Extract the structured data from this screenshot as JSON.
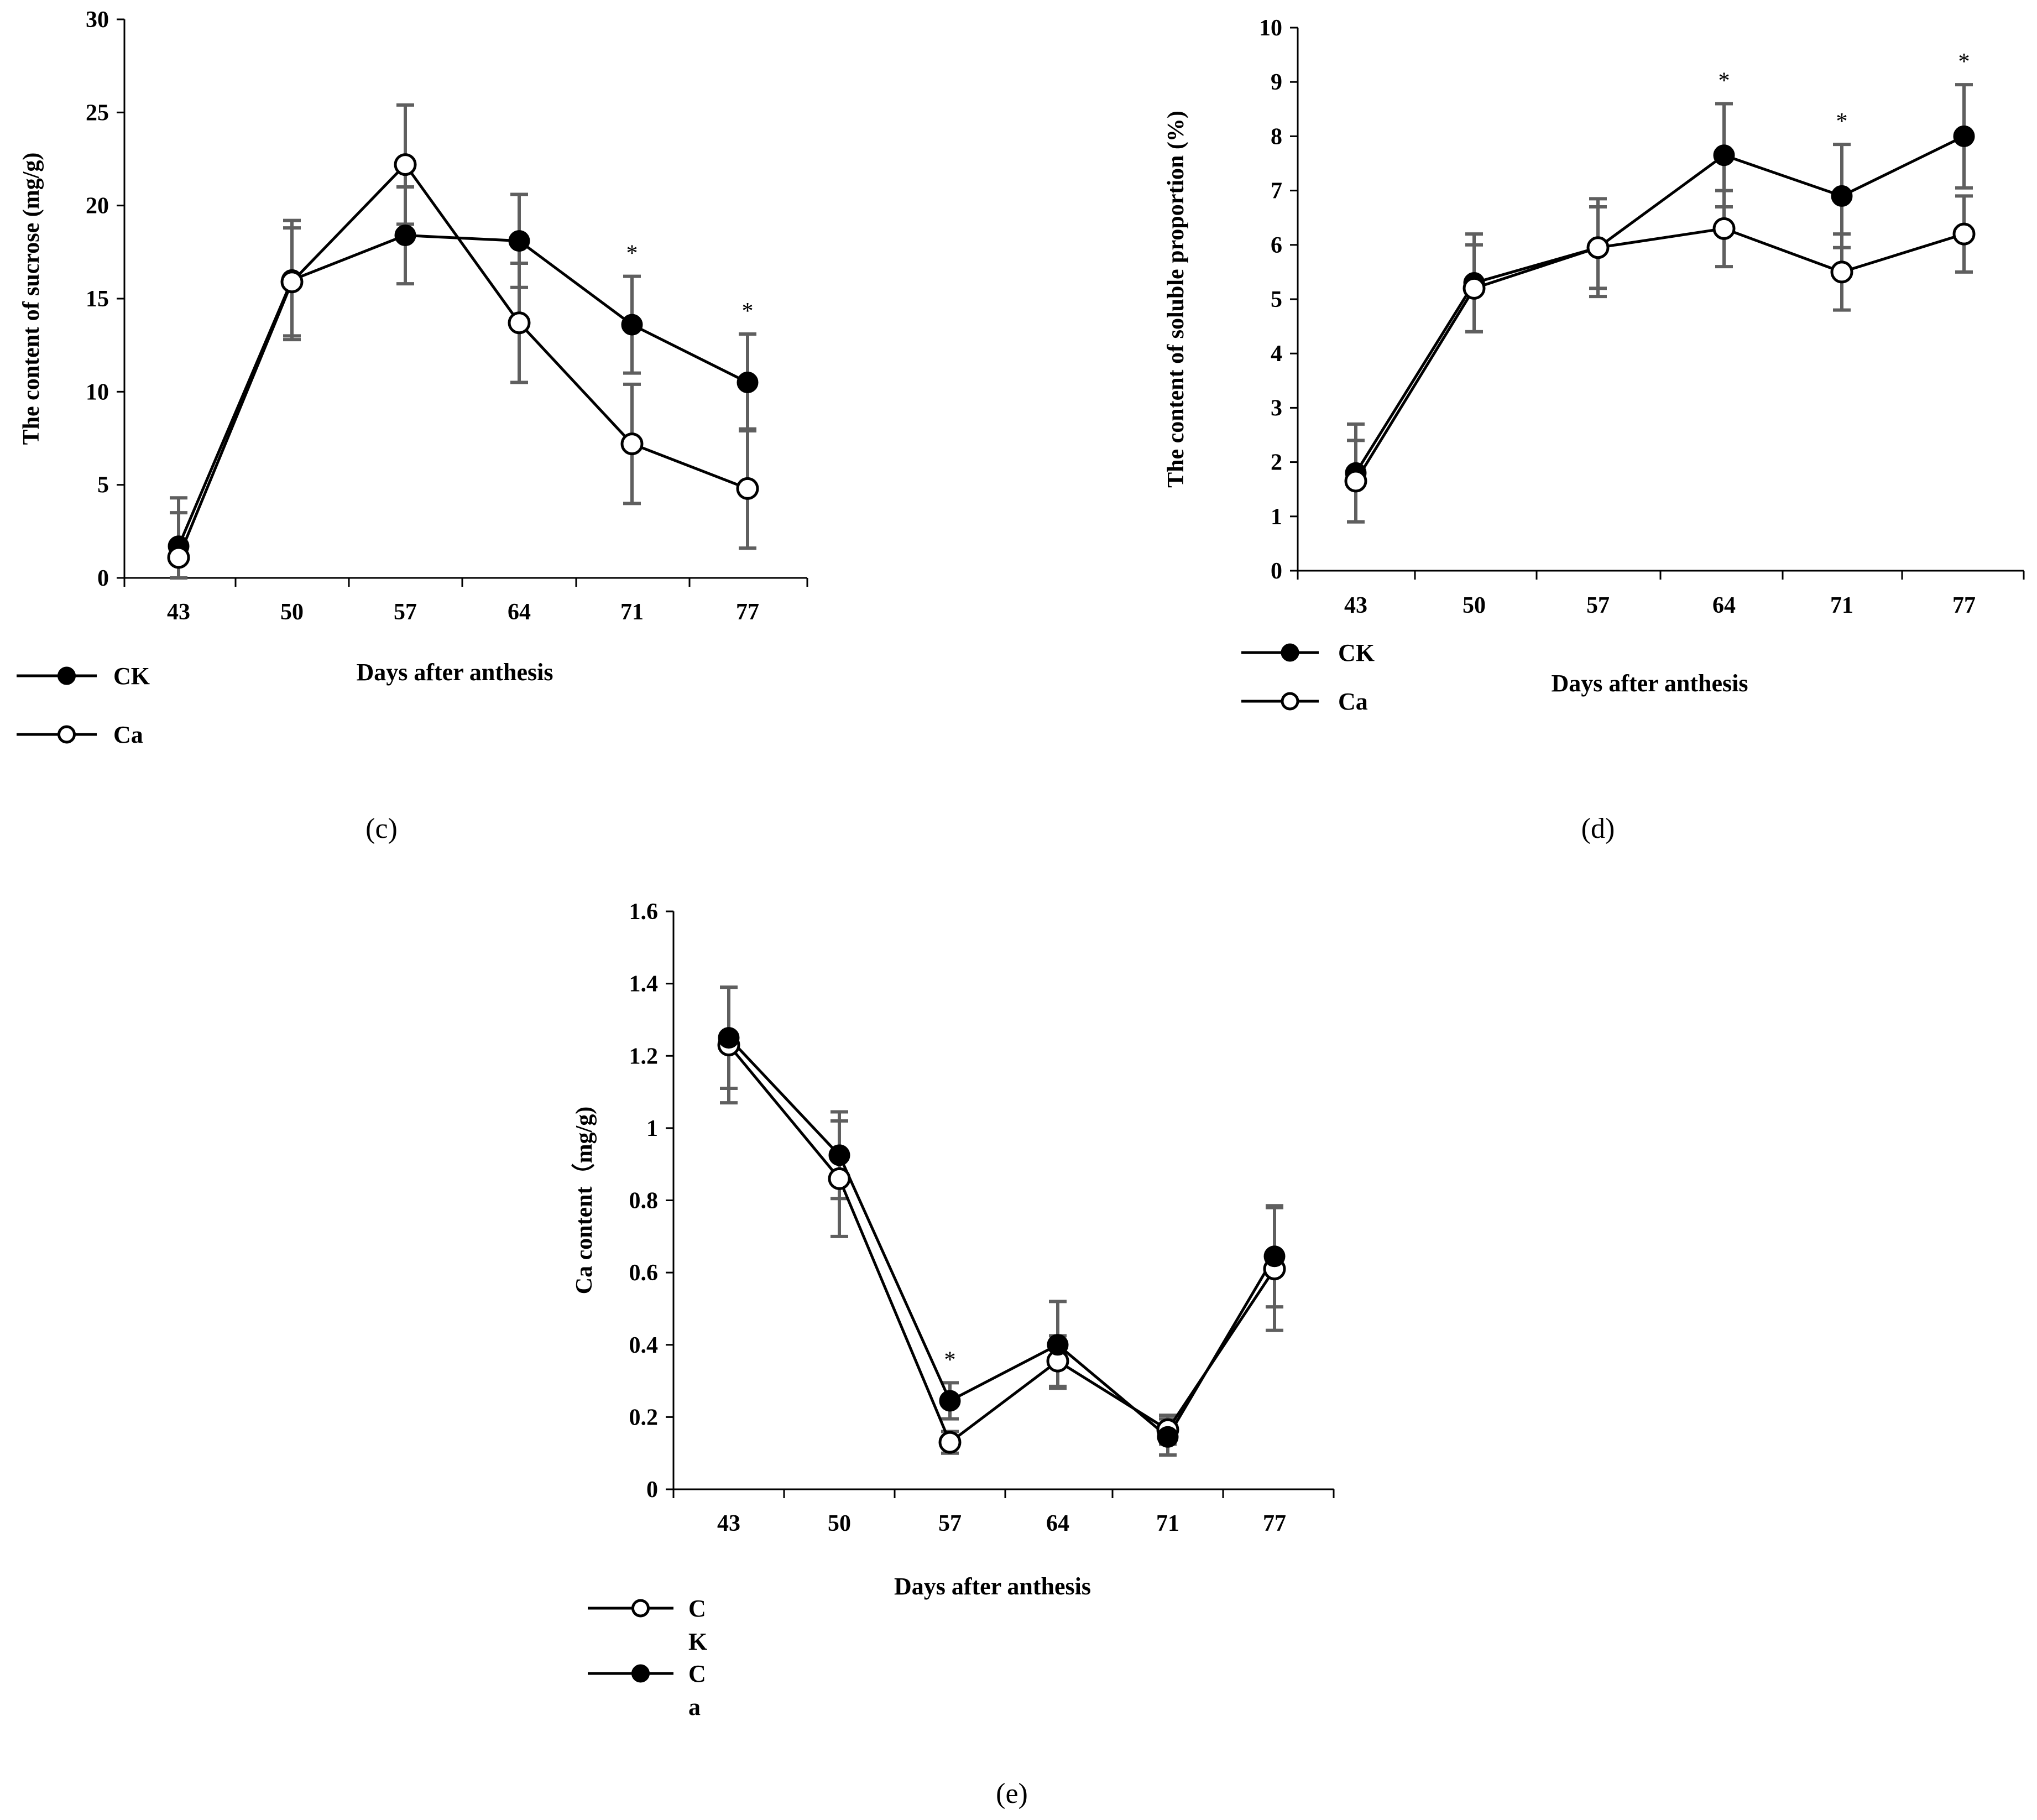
{
  "chart_data": [
    {
      "id": "c",
      "type": "line",
      "caption": "(c)",
      "xlabel": "Days after anthesis",
      "ylabel": "The content of sucrose (mg/g)",
      "categories": [
        "43",
        "50",
        "57",
        "64",
        "71",
        "77"
      ],
      "ylim": [
        0,
        30
      ],
      "yticks": [
        "0",
        "5",
        "10",
        "15",
        "20",
        "25",
        "30"
      ],
      "series": [
        {
          "name": "CK",
          "marker": "filled",
          "values": [
            1.7,
            16.0,
            18.4,
            18.1,
            13.6,
            10.5
          ],
          "errors": [
            2.6,
            3.2,
            2.6,
            2.5,
            2.6,
            2.6
          ]
        },
        {
          "name": "Ca",
          "marker": "open",
          "values": [
            1.1,
            15.9,
            22.2,
            13.7,
            7.2,
            4.8
          ],
          "errors": [
            2.4,
            2.9,
            3.2,
            3.2,
            3.2,
            3.2
          ]
        }
      ],
      "significance": [
        "",
        "",
        "",
        "",
        "*",
        "*"
      ],
      "legend": [
        {
          "label": "CK",
          "marker": "filled"
        },
        {
          "label": "Ca",
          "marker": "open"
        }
      ]
    },
    {
      "id": "d",
      "type": "line",
      "caption": "(d)",
      "xlabel": "Days after anthesis",
      "ylabel": "The content of soluble proportion (%)",
      "categories": [
        "43",
        "50",
        "57",
        "64",
        "71",
        "77"
      ],
      "ylim": [
        0,
        10
      ],
      "yticks": [
        "0",
        "1",
        "2",
        "3",
        "4",
        "5",
        "6",
        "7",
        "8",
        "9",
        "10"
      ],
      "series": [
        {
          "name": "CK",
          "marker": "filled",
          "values": [
            1.8,
            5.3,
            5.95,
            7.65,
            6.9,
            8.0
          ],
          "errors": [
            0.9,
            0.9,
            0.9,
            0.95,
            0.95,
            0.95
          ]
        },
        {
          "name": "Ca",
          "marker": "open",
          "values": [
            1.65,
            5.2,
            5.95,
            6.3,
            5.5,
            6.2
          ],
          "errors": [
            0.75,
            0.8,
            0.75,
            0.7,
            0.7,
            0.7
          ]
        }
      ],
      "significance": [
        "",
        "",
        "",
        "*",
        "*",
        "*"
      ],
      "legend": [
        {
          "label": "CK",
          "marker": "filled"
        },
        {
          "label": "Ca",
          "marker": "open"
        }
      ]
    },
    {
      "id": "e",
      "type": "line",
      "caption": "(e)",
      "xlabel": "Days after anthesis",
      "ylabel": "Ca content（mg/g)",
      "categories": [
        "43",
        "50",
        "57",
        "64",
        "71",
        "77"
      ],
      "ylim": [
        0,
        1.6
      ],
      "yticks": [
        "0",
        "0.2",
        "0.4",
        "0.6",
        "0.8",
        "1",
        "1.2",
        "1.4",
        "1.6"
      ],
      "series": [
        {
          "name": "CK",
          "marker": "open",
          "values": [
            1.23,
            0.86,
            0.13,
            0.355,
            0.165,
            0.61
          ],
          "errors": [
            0.16,
            0.16,
            0.03,
            0.07,
            0.04,
            0.17
          ]
        },
        {
          "name": "Ca",
          "marker": "filled",
          "values": [
            1.25,
            0.925,
            0.245,
            0.4,
            0.145,
            0.645
          ],
          "errors": [
            0.14,
            0.12,
            0.05,
            0.12,
            0.05,
            0.14
          ]
        }
      ],
      "significance": [
        "",
        "",
        "*",
        "",
        "",
        ""
      ],
      "legend": [
        {
          "label": "C\nK",
          "marker": "open"
        },
        {
          "label": "C\na",
          "marker": "filled"
        }
      ]
    }
  ]
}
